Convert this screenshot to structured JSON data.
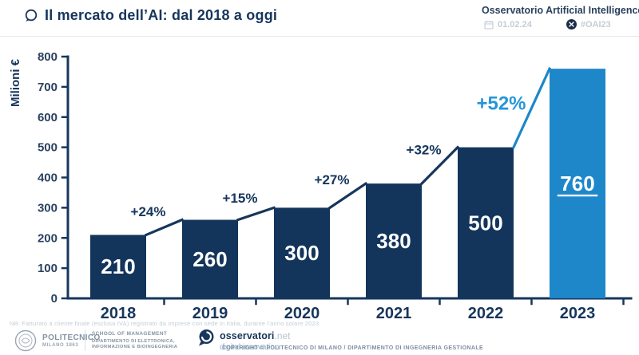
{
  "header": {
    "title": "Il mercato dell’AI: dal 2018 a oggi",
    "brand": "Osservatorio Artificial Intelligence",
    "date": "01.02.24",
    "hashtag": "#OAI23"
  },
  "chart_data": {
    "type": "bar",
    "title": "Il mercato dell’AI: dal 2018 a oggi",
    "ylabel": "Milioni €",
    "xlabel": "",
    "ylim": [
      0,
      800
    ],
    "ytick_step": 100,
    "grid": false,
    "legend": "none",
    "categories": [
      "2018",
      "2019",
      "2020",
      "2021",
      "2022",
      "2023"
    ],
    "values": [
      210,
      260,
      300,
      380,
      500,
      760
    ],
    "growth_labels": [
      "+24%",
      "+15%",
      "+27%",
      "+32%",
      "+52%"
    ],
    "highlight_index": 5,
    "highlight_value_underlined": true,
    "colors": {
      "bar": "#13355B",
      "highlight": "#1E87C9",
      "axis": "#16365C",
      "value_label": "#FFFFFF",
      "growth_label": "#16365C",
      "growth_label_highlight": "#2596D9"
    }
  },
  "footnote": "NB: Fatturato a cliente finale (esclusa IVA) registrato da imprese con sede in Italia, durante l’anno solare 2023",
  "footer": {
    "politecnico_line1": "POLITECNICO",
    "politecnico_line2": "MILANO 1863",
    "school_line1": "SCHOOL OF MANAGEMENT",
    "school_line2": "DIPARTIMENTO DI ELETTRONICA,",
    "school_line3": "INFORMAZIONE E BIOINGEGNERIA",
    "osservatori_name": "osservatori",
    "osservatori_tld": ".net",
    "osservatori_tagline": "digital innovation",
    "copyright": "COPYRIGHT © POLITECNICO DI MILANO / DIPARTIMENTO DI INGEGNERIA GESTIONALE"
  }
}
